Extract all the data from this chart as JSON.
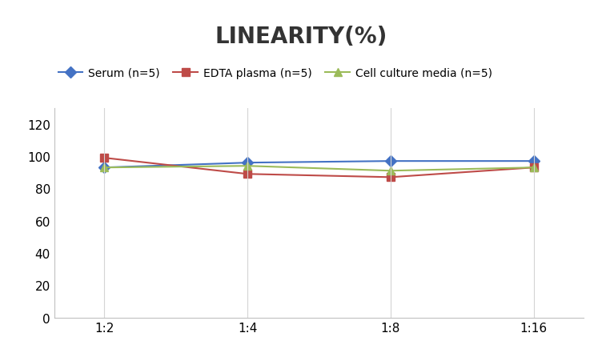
{
  "title": "LINEARITY(%)",
  "x_labels": [
    "1:2",
    "1:4",
    "1:8",
    "1:16"
  ],
  "x_positions": [
    0,
    1,
    2,
    3
  ],
  "series": [
    {
      "label": "Serum (n=5)",
      "values": [
        93,
        96,
        97,
        97
      ],
      "color": "#4472C4",
      "marker": "D",
      "marker_size": 7,
      "linewidth": 1.5
    },
    {
      "label": "EDTA plasma (n=5)",
      "values": [
        99,
        89,
        87,
        93
      ],
      "color": "#BE4B48",
      "marker": "s",
      "marker_size": 7,
      "linewidth": 1.5
    },
    {
      "label": "Cell culture media (n=5)",
      "values": [
        93,
        94,
        91,
        93
      ],
      "color": "#9BBB59",
      "marker": "^",
      "marker_size": 7,
      "linewidth": 1.5
    }
  ],
  "ylim": [
    0,
    130
  ],
  "yticks": [
    0,
    20,
    40,
    60,
    80,
    100,
    120
  ],
  "background_color": "#ffffff",
  "grid_color": "#d4d4d4",
  "title_fontsize": 20,
  "legend_fontsize": 10,
  "tick_fontsize": 11,
  "spine_color": "#c0c0c0"
}
